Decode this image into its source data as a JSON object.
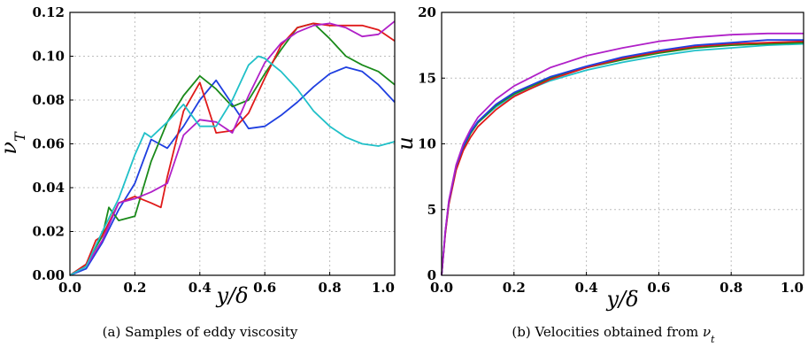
{
  "series_colors": [
    "#1f3fe0",
    "#1a8a1a",
    "#e01a1a",
    "#b020c8",
    "#20c0c8"
  ],
  "chart_data": [
    {
      "type": "line",
      "xlabel": "y/δ",
      "ylabel": "ν_T",
      "caption": "(a) Samples of eddy viscosity",
      "xlim": [
        0.0,
        1.0
      ],
      "ylim": [
        0.0,
        0.12
      ],
      "xticks": [
        "0.0",
        "0.2",
        "0.4",
        "0.6",
        "0.8",
        "1.0"
      ],
      "yticks": [
        "0.00",
        "0.02",
        "0.04",
        "0.06",
        "0.08",
        "0.10",
        "0.12"
      ],
      "grid": true,
      "series": [
        {
          "color": "#1f3fe0",
          "x": [
            0,
            0.05,
            0.1,
            0.15,
            0.2,
            0.25,
            0.3,
            0.35,
            0.4,
            0.45,
            0.5,
            0.55,
            0.6,
            0.65,
            0.7,
            0.75,
            0.8,
            0.85,
            0.9,
            0.95,
            1.0
          ],
          "y": [
            0,
            0.003,
            0.015,
            0.03,
            0.042,
            0.062,
            0.058,
            0.068,
            0.08,
            0.089,
            0.078,
            0.067,
            0.068,
            0.073,
            0.079,
            0.086,
            0.092,
            0.095,
            0.093,
            0.087,
            0.079
          ]
        },
        {
          "color": "#1a8a1a",
          "x": [
            0,
            0.05,
            0.1,
            0.12,
            0.15,
            0.2,
            0.25,
            0.3,
            0.35,
            0.4,
            0.45,
            0.5,
            0.55,
            0.6,
            0.65,
            0.7,
            0.75,
            0.8,
            0.85,
            0.9,
            0.95,
            1.0
          ],
          "y": [
            0,
            0.005,
            0.018,
            0.031,
            0.025,
            0.027,
            0.052,
            0.07,
            0.082,
            0.091,
            0.085,
            0.077,
            0.08,
            0.092,
            0.103,
            0.113,
            0.115,
            0.108,
            0.1,
            0.096,
            0.093,
            0.087
          ]
        },
        {
          "color": "#e01a1a",
          "x": [
            0,
            0.05,
            0.08,
            0.1,
            0.15,
            0.2,
            0.25,
            0.28,
            0.3,
            0.35,
            0.4,
            0.45,
            0.5,
            0.55,
            0.6,
            0.65,
            0.7,
            0.75,
            0.8,
            0.85,
            0.9,
            0.95,
            1.0
          ],
          "y": [
            0,
            0.005,
            0.016,
            0.018,
            0.033,
            0.036,
            0.033,
            0.031,
            0.045,
            0.075,
            0.088,
            0.065,
            0.066,
            0.074,
            0.09,
            0.105,
            0.113,
            0.115,
            0.114,
            0.114,
            0.114,
            0.112,
            0.107
          ]
        },
        {
          "color": "#b020c8",
          "x": [
            0,
            0.05,
            0.1,
            0.15,
            0.2,
            0.25,
            0.3,
            0.35,
            0.4,
            0.45,
            0.5,
            0.55,
            0.6,
            0.65,
            0.7,
            0.75,
            0.8,
            0.85,
            0.9,
            0.95,
            1.0
          ],
          "y": [
            0,
            0.004,
            0.016,
            0.033,
            0.035,
            0.038,
            0.042,
            0.064,
            0.071,
            0.07,
            0.065,
            0.082,
            0.097,
            0.106,
            0.111,
            0.114,
            0.115,
            0.113,
            0.109,
            0.11,
            0.116
          ]
        },
        {
          "color": "#20c0c8",
          "x": [
            0,
            0.05,
            0.1,
            0.15,
            0.2,
            0.23,
            0.25,
            0.3,
            0.35,
            0.4,
            0.45,
            0.5,
            0.55,
            0.58,
            0.6,
            0.65,
            0.7,
            0.75,
            0.8,
            0.85,
            0.9,
            0.95,
            1.0
          ],
          "y": [
            0,
            0.004,
            0.02,
            0.035,
            0.055,
            0.065,
            0.063,
            0.07,
            0.078,
            0.068,
            0.068,
            0.08,
            0.096,
            0.1,
            0.099,
            0.093,
            0.085,
            0.075,
            0.068,
            0.063,
            0.06,
            0.059,
            0.061
          ]
        }
      ]
    },
    {
      "type": "line",
      "xlabel": "y/δ",
      "ylabel": "u",
      "caption": "(b) Velocities obtained from ν_t",
      "xlim": [
        0.0,
        1.0
      ],
      "ylim": [
        0,
        20
      ],
      "xticks": [
        "0.0",
        "0.2",
        "0.4",
        "0.6",
        "0.8",
        "1.0"
      ],
      "yticks": [
        "0",
        "5",
        "10",
        "15",
        "20"
      ],
      "grid": true,
      "series": [
        {
          "color": "#20c0c8",
          "x": [
            0,
            0.01,
            0.02,
            0.04,
            0.06,
            0.08,
            0.1,
            0.15,
            0.2,
            0.3,
            0.4,
            0.5,
            0.6,
            0.7,
            0.8,
            0.9,
            1.0
          ],
          "y": [
            0,
            3.2,
            5.5,
            8.2,
            9.7,
            10.8,
            11.6,
            12.8,
            13.7,
            14.8,
            15.6,
            16.2,
            16.7,
            17.1,
            17.3,
            17.5,
            17.6
          ]
        },
        {
          "color": "#1a8a1a",
          "x": [
            0,
            0.01,
            0.02,
            0.04,
            0.06,
            0.08,
            0.1,
            0.15,
            0.2,
            0.3,
            0.4,
            0.5,
            0.6,
            0.7,
            0.8,
            0.9,
            1.0
          ],
          "y": [
            0,
            3.2,
            5.5,
            8.2,
            9.7,
            10.8,
            11.6,
            12.9,
            13.8,
            15.0,
            15.8,
            16.4,
            16.9,
            17.3,
            17.5,
            17.6,
            17.7
          ]
        },
        {
          "color": "#e01a1a",
          "x": [
            0,
            0.01,
            0.02,
            0.04,
            0.06,
            0.08,
            0.1,
            0.15,
            0.2,
            0.3,
            0.4,
            0.5,
            0.6,
            0.7,
            0.8,
            0.9,
            1.0
          ],
          "y": [
            0,
            3.1,
            5.4,
            8.0,
            9.5,
            10.5,
            11.3,
            12.6,
            13.6,
            14.9,
            15.8,
            16.5,
            17.0,
            17.4,
            17.6,
            17.7,
            17.8
          ]
        },
        {
          "color": "#1f3fe0",
          "x": [
            0,
            0.01,
            0.02,
            0.04,
            0.06,
            0.08,
            0.1,
            0.15,
            0.2,
            0.3,
            0.4,
            0.5,
            0.6,
            0.7,
            0.8,
            0.9,
            1.0
          ],
          "y": [
            0,
            3.3,
            5.6,
            8.3,
            9.8,
            10.9,
            11.7,
            13.0,
            13.9,
            15.1,
            15.9,
            16.6,
            17.1,
            17.5,
            17.7,
            17.9,
            17.9
          ]
        },
        {
          "color": "#b020c8",
          "x": [
            0,
            0.01,
            0.02,
            0.04,
            0.06,
            0.08,
            0.1,
            0.15,
            0.2,
            0.3,
            0.4,
            0.5,
            0.6,
            0.7,
            0.8,
            0.9,
            1.0
          ],
          "y": [
            0,
            3.3,
            5.7,
            8.4,
            10.0,
            11.1,
            12.0,
            13.4,
            14.4,
            15.8,
            16.7,
            17.3,
            17.8,
            18.1,
            18.3,
            18.4,
            18.4
          ]
        }
      ]
    }
  ]
}
